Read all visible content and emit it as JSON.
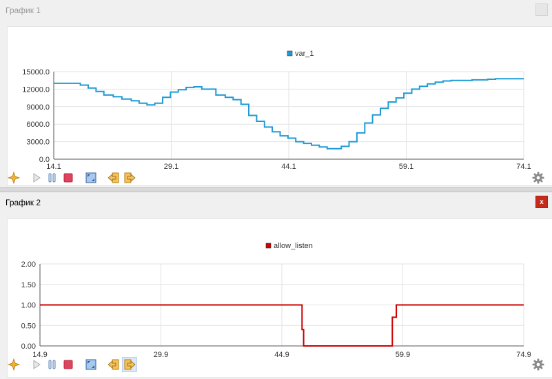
{
  "charts": [
    {
      "title": "График 1",
      "close_label": "",
      "chart_data": {
        "type": "line",
        "series": [
          {
            "name": "var_1",
            "color": "#1e9bd7",
            "step": true,
            "x": [
              14.1,
              17.5,
              18.5,
              19.5,
              20.5,
              21.7,
              22.8,
              24.0,
              25.0,
              26.0,
              27.0,
              28.0,
              29.0,
              30.0,
              31.0,
              32.0,
              33.0,
              34.8,
              36.0,
              37.0,
              38.0,
              39.0,
              40.0,
              41.0,
              42.0,
              43.0,
              44.0,
              45.0,
              46.0,
              47.0,
              48.0,
              49.0,
              50.8,
              51.8,
              52.8,
              53.8,
              54.8,
              55.8,
              56.8,
              57.8,
              58.8,
              59.8,
              60.8,
              61.8,
              62.8,
              63.8,
              64.8,
              67.5,
              69.5,
              70.5,
              74.1
            ],
            "y": [
              13000,
              12700,
              12200,
              11600,
              11000,
              10700,
              10300,
              10000,
              9600,
              9300,
              9600,
              10600,
              11500,
              11900,
              12300,
              12400,
              12000,
              11000,
              10600,
              10200,
              9400,
              7500,
              6500,
              5500,
              4700,
              4000,
              3600,
              3000,
              2700,
              2400,
              2100,
              1800,
              2200,
              3000,
              4500,
              6200,
              7600,
              8700,
              9800,
              10500,
              11300,
              12000,
              12500,
              12900,
              13200,
              13400,
              13500,
              13600,
              13700,
              13800,
              13800
            ]
          }
        ],
        "ylim": [
          0,
          15000
        ],
        "yticks": [
          "0.0",
          "3000.0",
          "6000.0",
          "9000.0",
          "12000.0",
          "15000.0"
        ],
        "xlim": [
          14.1,
          74.1
        ],
        "xticks": [
          "14.1",
          "29.1",
          "44.1",
          "59.1",
          "74.1"
        ],
        "grid": true,
        "legend_position": "top"
      }
    },
    {
      "title": "График 2",
      "close_label": "x",
      "chart_data": {
        "type": "line",
        "series": [
          {
            "name": "allow_listen",
            "color": "#cc0000",
            "step": true,
            "x": [
              14.9,
              47.4,
              47.6,
              58.5,
              58.6,
              59.1
            ],
            "y": [
              1,
              0.4,
              0,
              0,
              0.7,
              1
            ]
          }
        ],
        "ylim": [
          0,
          2
        ],
        "yticks": [
          "0.00",
          "0.50",
          "1.00",
          "1.50",
          "2.00"
        ],
        "xlim": [
          14.9,
          74.9
        ],
        "xticks": [
          "14.9",
          "29.9",
          "44.9",
          "59.9",
          "74.9"
        ],
        "grid": true,
        "legend_position": "top"
      }
    }
  ],
  "toolbar_icons": [
    "crosshair-icon",
    "play-icon",
    "pause-icon",
    "stop-icon",
    "zoom-fit-icon",
    "scroll-left-icon",
    "scroll-right-icon"
  ],
  "settings_icon": "gear-icon"
}
